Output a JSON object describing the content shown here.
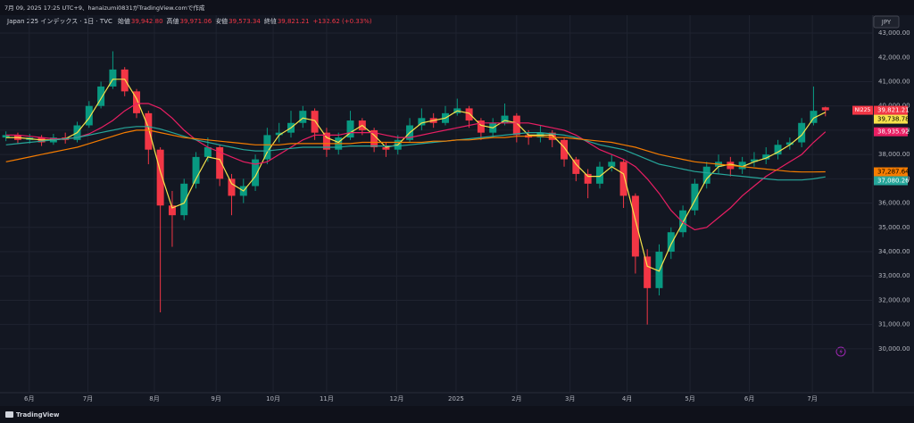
{
  "page_header": "7月 09, 2025 17:25 UTC+9、hanaizumi0831がTradingView.comで作成",
  "footer_brand": "TradingView",
  "currency_button": "JPY",
  "chart_data": {
    "type": "candlestick",
    "title": "Japan 225 インデックス · 1日 · TVC",
    "legend_items": [
      {
        "k": "始値",
        "v": "39,942.80"
      },
      {
        "k": "高値",
        "v": "39,971.06"
      },
      {
        "k": "安値",
        "v": "39,573.34"
      },
      {
        "k": "終値",
        "v": "39,821.21"
      }
    ],
    "change": "+132.62 (+0.33%)",
    "symbol_tag": "NI225",
    "up_color": "#089981",
    "down_color": "#f23645",
    "xlim": [
      -0.5,
      73
    ],
    "xticks": [
      {
        "value": 1.96,
        "label": "6月"
      },
      {
        "value": 6.9,
        "label": "7月"
      },
      {
        "value": 12.5,
        "label": "8月"
      },
      {
        "value": 17.7,
        "label": "9月"
      },
      {
        "value": 22.5,
        "label": "10月"
      },
      {
        "value": 27,
        "label": "11月"
      },
      {
        "value": 32.9,
        "label": "12月"
      },
      {
        "value": 37.9,
        "label": "2025"
      },
      {
        "value": 43,
        "label": "2月"
      },
      {
        "value": 47.5,
        "label": "3月"
      },
      {
        "value": 52.3,
        "label": "4月"
      },
      {
        "value": 57.6,
        "label": "5月"
      },
      {
        "value": 62.6,
        "label": "6月"
      },
      {
        "value": 67.9,
        "label": "7月"
      }
    ],
    "ylim": [
      28195,
      43737
    ],
    "yticks": [
      {
        "value": 30000,
        "label": "30,000.00"
      },
      {
        "value": 31000,
        "label": "31,000.00"
      },
      {
        "value": 32000,
        "label": "32,000.00"
      },
      {
        "value": 33000,
        "label": "33,000.00"
      },
      {
        "value": 34000,
        "label": "34,000.00"
      },
      {
        "value": 35000,
        "label": "35,000.00"
      },
      {
        "value": 36000,
        "label": "36,000.00"
      },
      {
        "value": 37000,
        "label": "37,000.00"
      },
      {
        "value": 38000,
        "label": "38,000.00"
      },
      {
        "value": 39000,
        "label": "39,000.00"
      },
      {
        "value": 40000,
        "label": "40,000.00"
      },
      {
        "value": 41000,
        "label": "41,000.00"
      },
      {
        "value": 42000,
        "label": "42,000.00"
      },
      {
        "value": 43000,
        "label": "43,000.00"
      }
    ],
    "grid": true,
    "open": [
      38700,
      38800,
      38600,
      38700,
      38500,
      38700,
      38600,
      39200,
      40000,
      40800,
      41500,
      40600,
      39700,
      38200,
      35900,
      35500,
      36800,
      37900,
      38300,
      37000,
      36300,
      36700,
      37800,
      38800,
      38900,
      39300,
      39800,
      38900,
      38200,
      38700,
      39400,
      39000,
      38300,
      38200,
      38600,
      39200,
      39500,
      39300,
      39700,
      39900,
      39400,
      38900,
      39300,
      39600,
      38800,
      38700,
      38900,
      38600,
      37800,
      37200,
      36800,
      37500,
      37700,
      36300,
      33800,
      32500,
      34000,
      34800,
      35700,
      36800,
      37500,
      37700,
      37400,
      37700,
      37800,
      38000,
      38400,
      38500,
      39300,
      39942.8
    ],
    "high": [
      38950,
      38900,
      38850,
      38800,
      38850,
      38900,
      39350,
      40200,
      41000,
      42250,
      41600,
      40700,
      39800,
      38300,
      36500,
      37000,
      38100,
      38700,
      38400,
      37200,
      37000,
      38000,
      39100,
      39300,
      39800,
      40000,
      39900,
      39100,
      38900,
      39800,
      39500,
      39100,
      38500,
      38800,
      39500,
      39900,
      39700,
      40000,
      40300,
      40000,
      39500,
      39500,
      40100,
      39700,
      39000,
      39200,
      39000,
      38700,
      37900,
      37400,
      37700,
      38000,
      37800,
      36400,
      34100,
      34300,
      35000,
      35900,
      37000,
      37700,
      38000,
      37900,
      37900,
      38100,
      38300,
      38600,
      38700,
      39500,
      40800,
      39971.06
    ],
    "low": [
      38550,
      38450,
      38450,
      38350,
      38400,
      38450,
      38500,
      39100,
      39900,
      40700,
      40400,
      39500,
      37600,
      31500,
      34200,
      35300,
      36600,
      37700,
      36700,
      35500,
      36000,
      36500,
      37600,
      38500,
      38700,
      39100,
      38600,
      37900,
      38000,
      38600,
      38800,
      38100,
      37900,
      38000,
      38500,
      39000,
      39100,
      39200,
      39600,
      39100,
      38600,
      38700,
      39200,
      38500,
      38400,
      38500,
      38300,
      37500,
      36900,
      36200,
      36600,
      37300,
      35800,
      33100,
      31000,
      32200,
      33700,
      34600,
      35500,
      36600,
      37200,
      37100,
      37200,
      37500,
      37600,
      37800,
      38200,
      38300,
      39200,
      39573.34
    ],
    "close": [
      38800,
      38600,
      38700,
      38500,
      38700,
      38600,
      39200,
      40000,
      40800,
      41500,
      40600,
      39700,
      38200,
      35900,
      35500,
      36800,
      37900,
      38300,
      37000,
      36300,
      36700,
      37800,
      38800,
      38900,
      39300,
      39800,
      38900,
      38200,
      38700,
      39400,
      39000,
      38300,
      38200,
      38600,
      39200,
      39500,
      39300,
      39700,
      39900,
      39400,
      38900,
      39300,
      39600,
      38800,
      38700,
      38900,
      38600,
      37800,
      37200,
      36800,
      37500,
      37700,
      36300,
      33800,
      32500,
      34000,
      34800,
      35700,
      36800,
      37500,
      37700,
      37400,
      37700,
      37800,
      38000,
      38400,
      38500,
      39300,
      39800,
      39821.21
    ],
    "series": [
      {
        "color": "#f7e34b",
        "values": [
          38700,
          38700,
          38650,
          38600,
          38600,
          38650,
          38900,
          39500,
          40300,
          41100,
          41100,
          40300,
          39100,
          37300,
          35800,
          36000,
          37000,
          37900,
          37800,
          36800,
          36500,
          37100,
          38100,
          38800,
          39100,
          39500,
          39400,
          38700,
          38500,
          38900,
          39200,
          38800,
          38300,
          38400,
          38900,
          39300,
          39400,
          39500,
          39800,
          39700,
          39200,
          39100,
          39400,
          39300,
          38800,
          38800,
          38800,
          38300,
          37600,
          37100,
          37100,
          37500,
          37200,
          35300,
          33400,
          33200,
          34300,
          35200,
          36100,
          37000,
          37500,
          37600,
          37500,
          37700,
          37850,
          38100,
          38400,
          38800,
          39500,
          39738.78
        ]
      },
      {
        "color": "#e91e63",
        "values": [
          38800,
          38800,
          38750,
          38700,
          38650,
          38650,
          38700,
          38850,
          39100,
          39400,
          39800,
          40100,
          40100,
          39900,
          39500,
          39000,
          38600,
          38300,
          38100,
          37900,
          37700,
          37600,
          37700,
          38000,
          38300,
          38600,
          38800,
          38800,
          38800,
          38900,
          38900,
          38900,
          38800,
          38700,
          38700,
          38800,
          38900,
          39000,
          39100,
          39200,
          39300,
          39300,
          39300,
          39300,
          39300,
          39200,
          39100,
          39000,
          38800,
          38500,
          38200,
          38000,
          37800,
          37500,
          37000,
          36400,
          35700,
          35200,
          34900,
          35000,
          35400,
          35800,
          36300,
          36700,
          37100,
          37400,
          37700,
          38000,
          38500,
          38935.92
        ]
      },
      {
        "color": "#26a69a",
        "values": [
          38400,
          38450,
          38500,
          38550,
          38600,
          38650,
          38700,
          38800,
          38900,
          39000,
          39100,
          39150,
          39150,
          39050,
          38900,
          38750,
          38600,
          38500,
          38400,
          38300,
          38200,
          38150,
          38150,
          38200,
          38250,
          38300,
          38300,
          38300,
          38300,
          38350,
          38350,
          38350,
          38350,
          38350,
          38400,
          38450,
          38500,
          38550,
          38600,
          38650,
          38700,
          38750,
          38800,
          38850,
          38900,
          38900,
          38850,
          38800,
          38700,
          38550,
          38400,
          38300,
          38200,
          38000,
          37800,
          37600,
          37500,
          37400,
          37300,
          37250,
          37200,
          37150,
          37100,
          37050,
          37000,
          36950,
          36950,
          36950,
          37000,
          37080.26
        ]
      },
      {
        "color": "#f57c00",
        "values": [
          37700,
          37800,
          37900,
          38000,
          38100,
          38200,
          38300,
          38450,
          38600,
          38750,
          38900,
          39000,
          39000,
          38900,
          38800,
          38700,
          38650,
          38600,
          38550,
          38500,
          38450,
          38400,
          38400,
          38400,
          38450,
          38450,
          38450,
          38450,
          38450,
          38450,
          38500,
          38500,
          38500,
          38500,
          38500,
          38500,
          38550,
          38550,
          38600,
          38600,
          38650,
          38700,
          38700,
          38750,
          38750,
          38750,
          38700,
          38700,
          38650,
          38600,
          38550,
          38500,
          38400,
          38300,
          38150,
          38000,
          37900,
          37800,
          37700,
          37650,
          37600,
          37550,
          37500,
          37450,
          37400,
          37350,
          37300,
          37280,
          37280,
          37287.64
        ]
      }
    ],
    "price_labels": [
      {
        "value": 39821.21,
        "label": "39,821.21",
        "color": "#f23645",
        "text_color": "#ffffff"
      },
      {
        "value": 39738.78,
        "label": "39,738.78",
        "color": "#f7e34b",
        "text_color": "#000000"
      },
      {
        "value": 38935.92,
        "label": "38,935.92",
        "color": "#e91e63",
        "text_color": "#ffffff"
      },
      {
        "value": 37287.64,
        "label": "37,287.64",
        "color": "#f57c00",
        "text_color": "#000000"
      },
      {
        "value": 37080.26,
        "label": "37,080.26",
        "color": "#26a69a",
        "text_color": "#ffffff"
      }
    ]
  }
}
